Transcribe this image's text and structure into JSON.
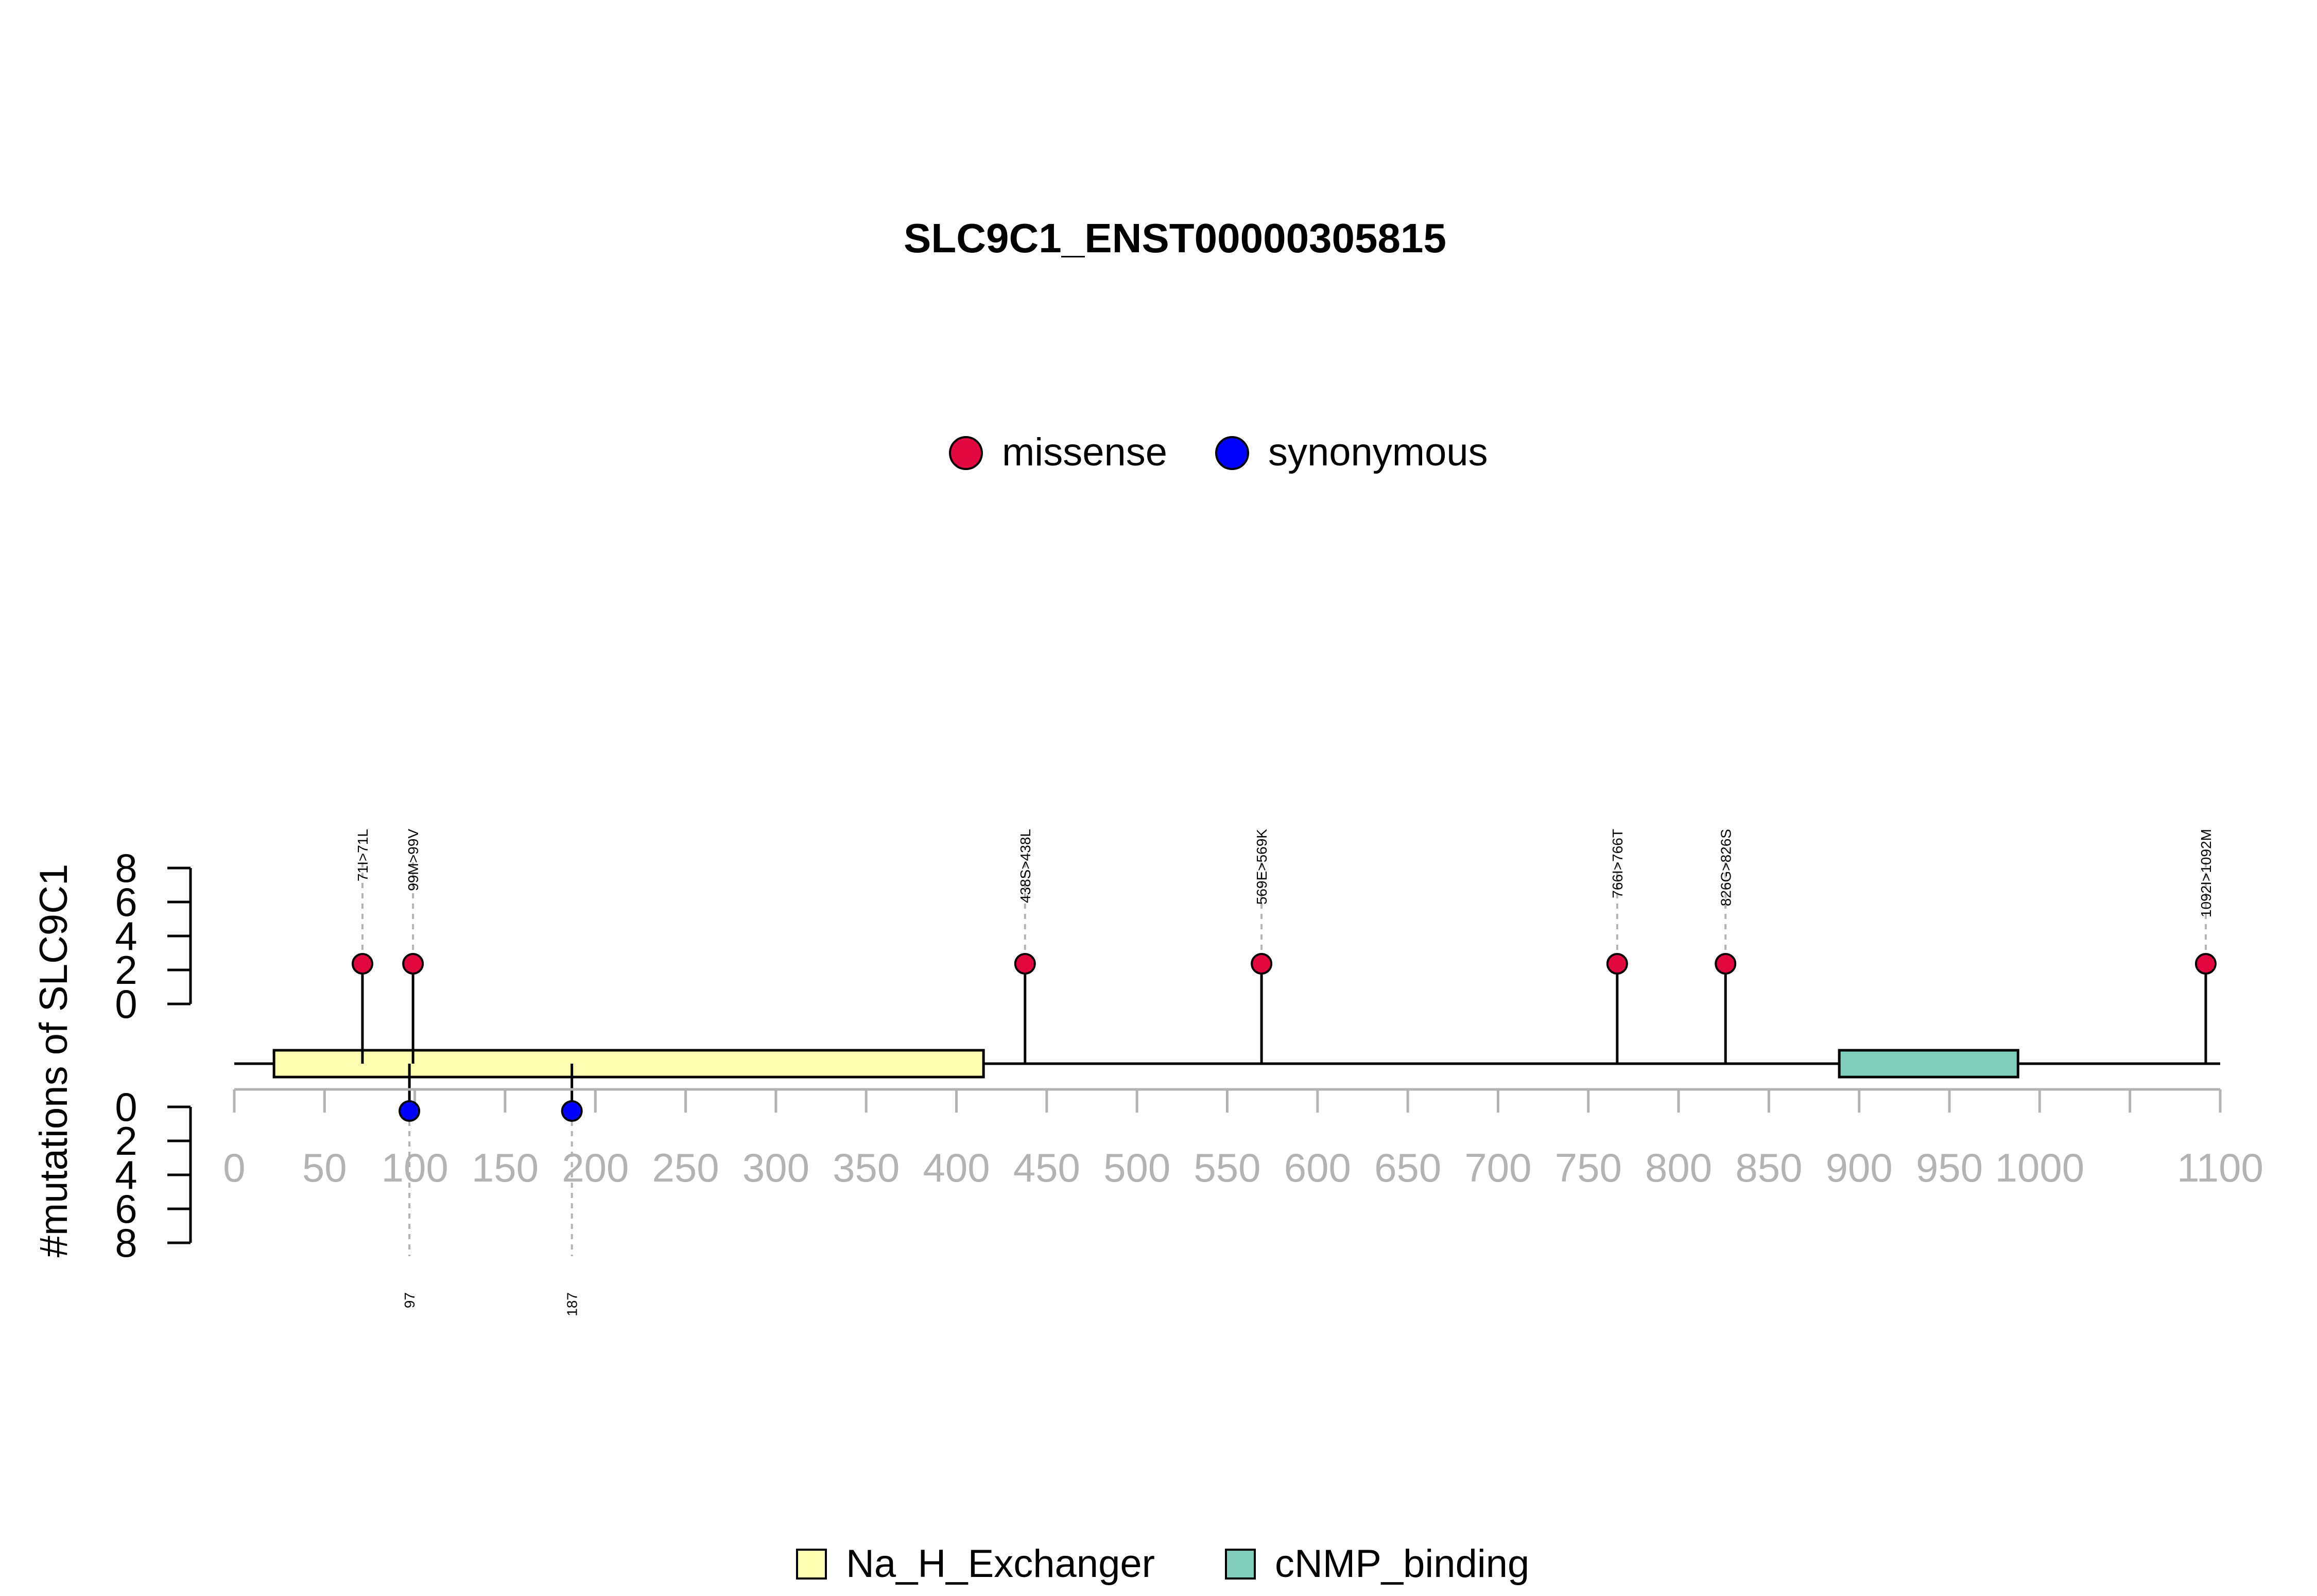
{
  "title": "SLC9C1_ENST00000305815",
  "colors": {
    "missense": "#E3073F",
    "synonymous": "#0000FF",
    "axis_gray": "#B3B3B3",
    "Na_H_Exchanger": "#FFFFB2",
    "cNMP_binding": "#7FCDBB"
  },
  "chart_data": {
    "type": "lollipop",
    "title": "SLC9C1_ENST00000305815",
    "ylabel": "#mutations of SLC9C1",
    "xlim": [
      0,
      1100
    ],
    "x_ticks": [
      0,
      50,
      100,
      150,
      200,
      250,
      300,
      350,
      400,
      450,
      500,
      550,
      600,
      650,
      700,
      750,
      800,
      850,
      900,
      950,
      1000,
      1050,
      1100
    ],
    "x_tick_labels": [
      "0",
      "50",
      "100",
      "150",
      "200",
      "250",
      "300",
      "350",
      "400",
      "450",
      "500",
      "550",
      "600",
      "650",
      "700",
      "750",
      "800",
      "850",
      "900",
      "950",
      "1000",
      "",
      "1100"
    ],
    "y_top_ticks": [
      "0",
      "2",
      "4",
      "6",
      "8"
    ],
    "y_bottom_ticks": [
      "0",
      "2",
      "4",
      "6",
      "8"
    ],
    "y_range": [
      0,
      8
    ],
    "legend_top": [
      {
        "name": "missense",
        "color_key": "missense"
      },
      {
        "name": "synonymous",
        "color_key": "synonymous"
      }
    ],
    "legend_bottom": [
      {
        "name": "Na_H_Exchanger",
        "color_key": "Na_H_Exchanger"
      },
      {
        "name": "cNMP_binding",
        "color_key": "cNMP_binding"
      }
    ],
    "domains": [
      {
        "name": "Na_H_Exchanger",
        "start": 22,
        "end": 415
      },
      {
        "name": "cNMP_binding",
        "start": 889,
        "end": 988
      }
    ],
    "mutations_top": [
      {
        "pos": 71,
        "label": "71I>71L",
        "count": 1,
        "type": "missense"
      },
      {
        "pos": 99,
        "label": "99M>99V",
        "count": 1,
        "type": "missense"
      },
      {
        "pos": 438,
        "label": "438S>438L",
        "count": 1,
        "type": "missense"
      },
      {
        "pos": 569,
        "label": "569E>569K",
        "count": 1,
        "type": "missense"
      },
      {
        "pos": 766,
        "label": "766I>766T",
        "count": 1,
        "type": "missense"
      },
      {
        "pos": 826,
        "label": "826G>826S",
        "count": 1,
        "type": "missense"
      },
      {
        "pos": 1092,
        "label": "1092I>1092M",
        "count": 1,
        "type": "missense"
      }
    ],
    "mutations_bottom": [
      {
        "pos": 97,
        "label": "97",
        "count": 1,
        "type": "synonymous"
      },
      {
        "pos": 187,
        "label": "187",
        "count": 1,
        "type": "synonymous"
      }
    ]
  }
}
